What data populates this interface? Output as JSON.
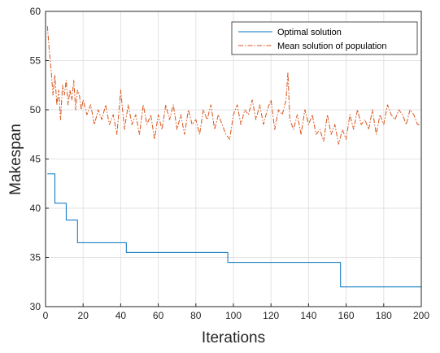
{
  "chart_data": {
    "type": "line",
    "title": "",
    "xlabel": "Iterations",
    "ylabel": "Makespan",
    "xlim": [
      0,
      200
    ],
    "ylim": [
      30,
      60
    ],
    "xticks": [
      0,
      20,
      40,
      60,
      80,
      100,
      120,
      140,
      160,
      180,
      200
    ],
    "yticks": [
      30,
      35,
      40,
      45,
      50,
      55,
      60
    ],
    "grid": true,
    "legend_position": "top-right",
    "series": [
      {
        "name": "Optimal solution",
        "color": "#0072BD",
        "line_style": "solid",
        "step": true,
        "x": [
          1,
          5,
          11,
          17,
          43,
          97,
          157,
          200
        ],
        "y": [
          43.5,
          40.5,
          38.8,
          36.5,
          35.5,
          34.5,
          32.0,
          32.0
        ]
      },
      {
        "name": "Mean solution of population",
        "color": "#D95319",
        "line_style": "dashdot",
        "x": [
          1,
          2,
          3,
          4,
          5,
          6,
          7,
          8,
          9,
          10,
          11,
          12,
          13,
          14,
          15,
          16,
          17,
          18,
          19,
          20,
          22,
          24,
          26,
          28,
          30,
          32,
          34,
          36,
          38,
          40,
          42,
          44,
          46,
          48,
          50,
          52,
          54,
          56,
          58,
          60,
          62,
          64,
          66,
          68,
          70,
          72,
          74,
          76,
          78,
          80,
          82,
          84,
          86,
          88,
          90,
          92,
          94,
          96,
          98,
          100,
          102,
          104,
          106,
          108,
          110,
          112,
          114,
          116,
          118,
          120,
          122,
          124,
          126,
          128,
          129,
          130,
          132,
          134,
          136,
          138,
          140,
          142,
          144,
          146,
          148,
          150,
          152,
          154,
          156,
          158,
          160,
          162,
          164,
          166,
          168,
          170,
          172,
          174,
          176,
          178,
          180,
          182,
          184,
          186,
          188,
          190,
          192,
          194,
          196,
          198,
          200
        ],
        "y": [
          58.5,
          56.0,
          54.0,
          51.5,
          53.5,
          50.5,
          52.0,
          49.0,
          52.5,
          51.5,
          53.0,
          50.5,
          52.0,
          51.0,
          53.0,
          50.0,
          52.0,
          51.5,
          50.0,
          51.0,
          49.5,
          50.5,
          48.5,
          50.0,
          49.0,
          50.5,
          48.5,
          49.5,
          47.5,
          52.0,
          48.0,
          50.5,
          48.5,
          49.5,
          47.5,
          50.5,
          48.5,
          49.5,
          47.0,
          49.5,
          48.0,
          50.5,
          49.0,
          50.5,
          48.0,
          49.5,
          47.5,
          50.0,
          48.5,
          49.0,
          47.5,
          50.0,
          49.0,
          50.5,
          48.0,
          49.5,
          48.5,
          47.5,
          47.0,
          49.5,
          50.5,
          48.5,
          50.0,
          49.5,
          51.0,
          49.0,
          50.5,
          48.5,
          50.0,
          51.0,
          48.0,
          50.0,
          49.5,
          51.0,
          53.8,
          49.0,
          48.0,
          49.5,
          47.5,
          50.0,
          48.5,
          49.5,
          47.5,
          48.0,
          46.8,
          49.5,
          47.5,
          48.5,
          46.5,
          48.0,
          47.0,
          49.5,
          48.0,
          50.0,
          48.5,
          49.0,
          48.0,
          50.0,
          47.5,
          49.5,
          48.5,
          50.5,
          49.5,
          49.0,
          50.0,
          49.5,
          48.5,
          50.0,
          49.5,
          48.5,
          48.5
        ]
      }
    ]
  }
}
